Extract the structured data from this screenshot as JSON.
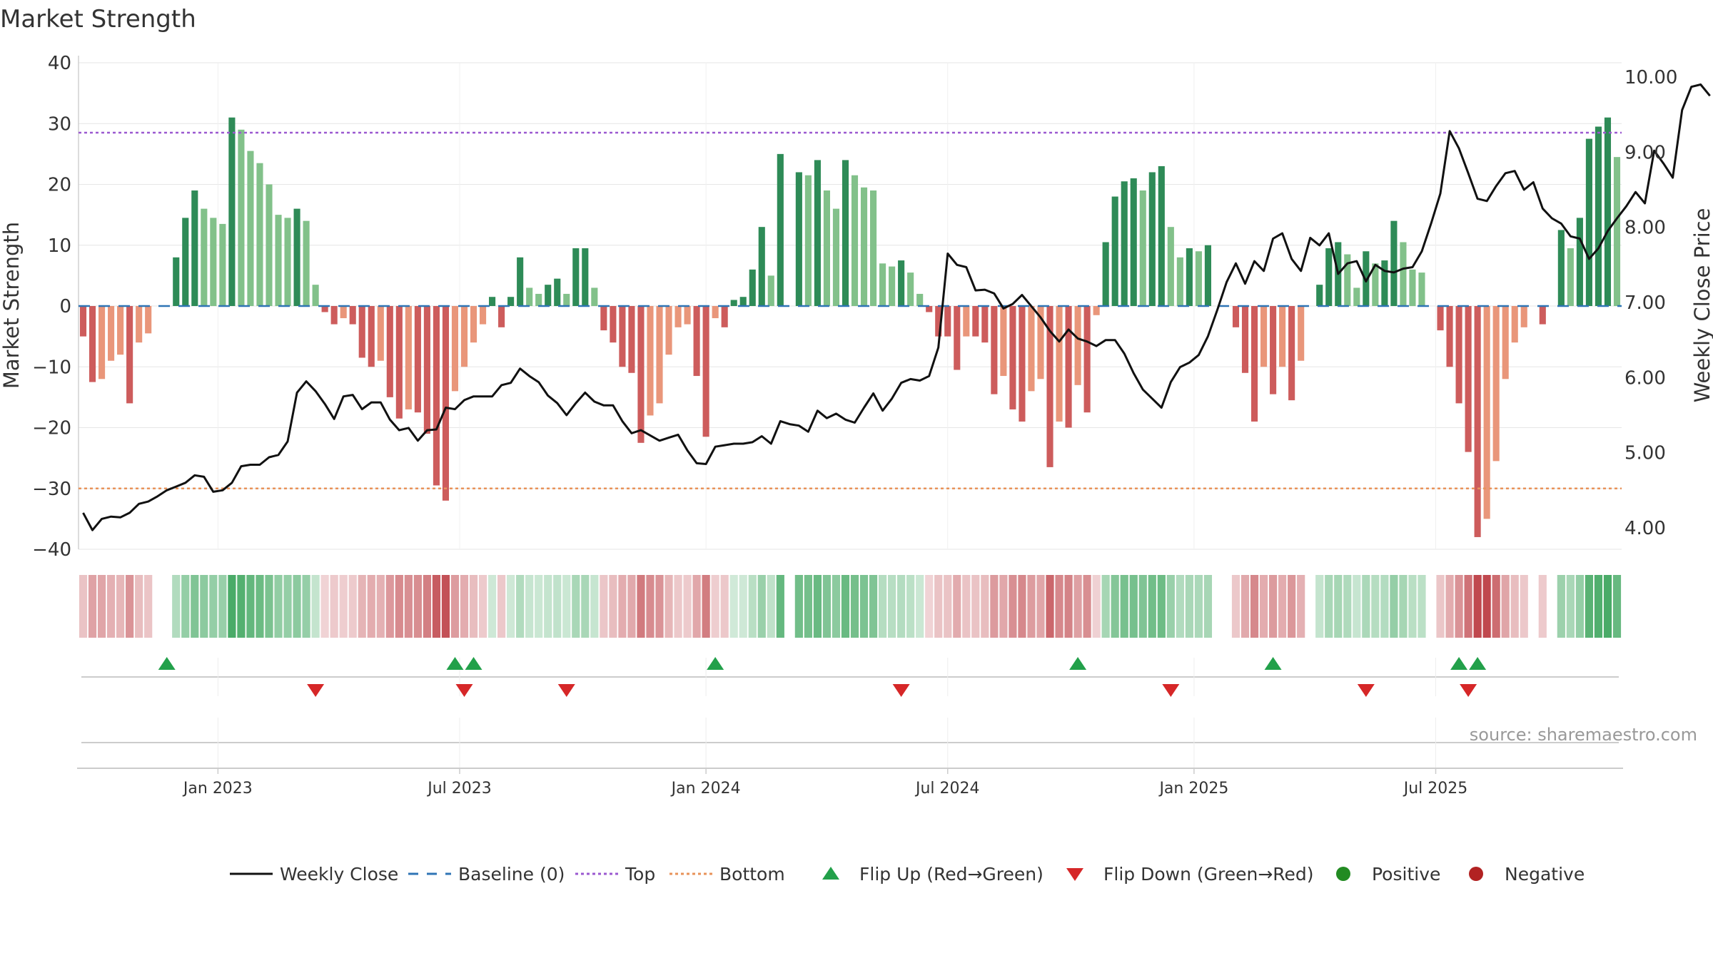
{
  "chart_data": {
    "type": "bar+line",
    "title": "Market Strength",
    "ylabel_left": "Market Strength",
    "ylabel_right": "Weekly Close Price",
    "source": "source: sharemaestro.com",
    "left_axis": {
      "ylim": [
        -40,
        40
      ],
      "ticks": [
        40,
        30,
        20,
        10,
        0,
        -10,
        -20,
        -30,
        -40
      ],
      "tick_labels": [
        "40",
        "30",
        "20",
        "10",
        "0",
        "−10",
        "−20",
        "−30",
        "−40"
      ]
    },
    "right_axis": {
      "ylim": [
        3.7,
        10.2
      ],
      "ticks": [
        10,
        9,
        8,
        7,
        6,
        5,
        4
      ],
      "tick_labels": [
        "10.00",
        "9.00",
        "8.00",
        "7.00",
        "6.00",
        "5.00",
        "4.00"
      ]
    },
    "x_axis": {
      "ticks": [
        {
          "label": "Jan 2023",
          "week": 15
        },
        {
          "label": "Jul 2023",
          "week": 41
        },
        {
          "label": "Jan 2024",
          "week": 67.5
        },
        {
          "label": "Jul 2024",
          "week": 93.5
        },
        {
          "label": "Jan 2025",
          "week": 120
        },
        {
          "label": "Jul 2025",
          "week": 146
        }
      ]
    },
    "top_level": 28.5,
    "bottom_level": -30,
    "baseline": 0,
    "strength": [
      -5,
      -12.5,
      -12,
      -9,
      -8,
      -16,
      -6,
      -4.5,
      0,
      0,
      8,
      14.5,
      19,
      16,
      14.5,
      13.5,
      31,
      29,
      25.5,
      23.5,
      20,
      15,
      14.5,
      16,
      14,
      3.5,
      -1,
      -3,
      -2,
      -3,
      -8.5,
      -10,
      -9,
      -15,
      -18.5,
      -17,
      -17.5,
      -21,
      -29.5,
      -32,
      -14,
      -10,
      -6,
      -3,
      1.5,
      -3.5,
      1.5,
      8,
      3,
      2,
      3.5,
      4.5,
      2,
      9.5,
      9.5,
      3,
      -4,
      -6,
      -10,
      -11,
      -22.5,
      -18,
      -16,
      -8,
      -3.5,
      -3,
      -11.5,
      -21.5,
      -2,
      -3.5,
      1,
      1.5,
      6,
      13,
      5,
      25,
      0,
      22,
      21.5,
      24,
      19,
      16,
      24,
      21.5,
      19.5,
      19,
      7,
      6.5,
      7.5,
      5.5,
      2,
      -1,
      -5,
      -5,
      -10.5,
      -5,
      -5,
      -6,
      -14.5,
      -11.5,
      -17,
      -19,
      -14,
      -12,
      -26.5,
      -19,
      -20,
      -13,
      -17.5,
      -1.5,
      10.5,
      18,
      20.5,
      21,
      19,
      22,
      23,
      13,
      8,
      9.5,
      9,
      10,
      0,
      0,
      -3.5,
      -11,
      -19,
      -10,
      -14.5,
      -10,
      -15.5,
      -9,
      0,
      3.5,
      9.5,
      10.5,
      8.5,
      3,
      9,
      7,
      7.5,
      14,
      10.5,
      6,
      5.5,
      0,
      -4,
      -10,
      -16,
      -24,
      -38,
      -35,
      -25.5,
      -12,
      -6,
      -3.5,
      0,
      -3,
      0,
      12.5,
      9.5,
      14.5,
      27.5,
      29.5,
      31,
      24.5
    ],
    "weekly_close": [
      4.2,
      3.97,
      4.12,
      4.15,
      4.14,
      4.2,
      4.32,
      4.35,
      4.42,
      4.5,
      4.55,
      4.6,
      4.7,
      4.68,
      4.48,
      4.5,
      4.6,
      4.82,
      4.84,
      4.84,
      4.94,
      4.97,
      5.15,
      5.8,
      5.95,
      5.82,
      5.65,
      5.45,
      5.75,
      5.77,
      5.58,
      5.67,
      5.67,
      5.44,
      5.3,
      5.33,
      5.16,
      5.3,
      5.31,
      5.6,
      5.58,
      5.7,
      5.75,
      5.75,
      5.75,
      5.9,
      5.93,
      6.12,
      6.02,
      5.94,
      5.76,
      5.66,
      5.5,
      5.66,
      5.8,
      5.68,
      5.63,
      5.63,
      5.42,
      5.26,
      5.3,
      5.23,
      5.16,
      5.2,
      5.24,
      5.03,
      4.86,
      4.85,
      5.08,
      5.1,
      5.12,
      5.12,
      5.14,
      5.22,
      5.12,
      5.42,
      5.38,
      5.36,
      5.28,
      5.56,
      5.46,
      5.52,
      5.44,
      5.4,
      5.6,
      5.79,
      5.56,
      5.72,
      5.93,
      5.98,
      5.96,
      6.02,
      6.4,
      7.65,
      7.5,
      7.47,
      7.16,
      7.17,
      7.12,
      6.92,
      6.98,
      7.1,
      6.95,
      6.8,
      6.62,
      6.48,
      6.64,
      6.52,
      6.48,
      6.42,
      6.5,
      6.5,
      6.32,
      6.06,
      5.84,
      5.72,
      5.6,
      5.94,
      6.14,
      6.2,
      6.3,
      6.55,
      6.9,
      7.27,
      7.52,
      7.25,
      7.55,
      7.42,
      7.85,
      7.92,
      7.58,
      7.42,
      7.86,
      7.76,
      7.92,
      7.38,
      7.52,
      7.55,
      7.28,
      7.5,
      7.42,
      7.4,
      7.45,
      7.47,
      7.68,
      8.05,
      8.45,
      9.28,
      9.05,
      8.72,
      8.38,
      8.35,
      8.55,
      8.72,
      8.75,
      8.5,
      8.6,
      8.25,
      8.12,
      8.05,
      7.88,
      7.85,
      7.58,
      7.72,
      7.95,
      8.12,
      8.28,
      8.47,
      8.32,
      9.02,
      8.85,
      8.66,
      9.56,
      9.87,
      9.9,
      9.75
    ],
    "flip_up_weeks": [
      9,
      40,
      42,
      68,
      107,
      128,
      148,
      150
    ],
    "flip_down_weeks": [
      25,
      41,
      52,
      88,
      117,
      138,
      149
    ],
    "legend": [
      {
        "type": "line",
        "label": "Weekly Close",
        "color": "#111111"
      },
      {
        "type": "dash",
        "label": "Baseline (0)",
        "color": "#2f74b5"
      },
      {
        "type": "dot",
        "label": "Top",
        "color": "#9b59d0"
      },
      {
        "type": "dot",
        "label": "Bottom",
        "color": "#e8935a"
      },
      {
        "type": "up",
        "label": "Flip Up (Red→Green)",
        "color": "#22a04a"
      },
      {
        "type": "down",
        "label": "Flip Down (Green→Red)",
        "color": "#d62728"
      },
      {
        "type": "circle",
        "label": "Positive",
        "color": "#228b22"
      },
      {
        "type": "circle",
        "label": "Negative",
        "color": "#b22222"
      }
    ],
    "colors": {
      "green_dark": "#2e8b57",
      "green_light": "#82c18a",
      "red_dark": "#cd5c5c",
      "red_light": "#e9967a",
      "top_line": "#9b59d0",
      "bottom_line": "#e8935a",
      "baseline": "#2f74b5",
      "close_line": "#111111",
      "flip_up": "#22a04a",
      "flip_down": "#d62728"
    }
  }
}
